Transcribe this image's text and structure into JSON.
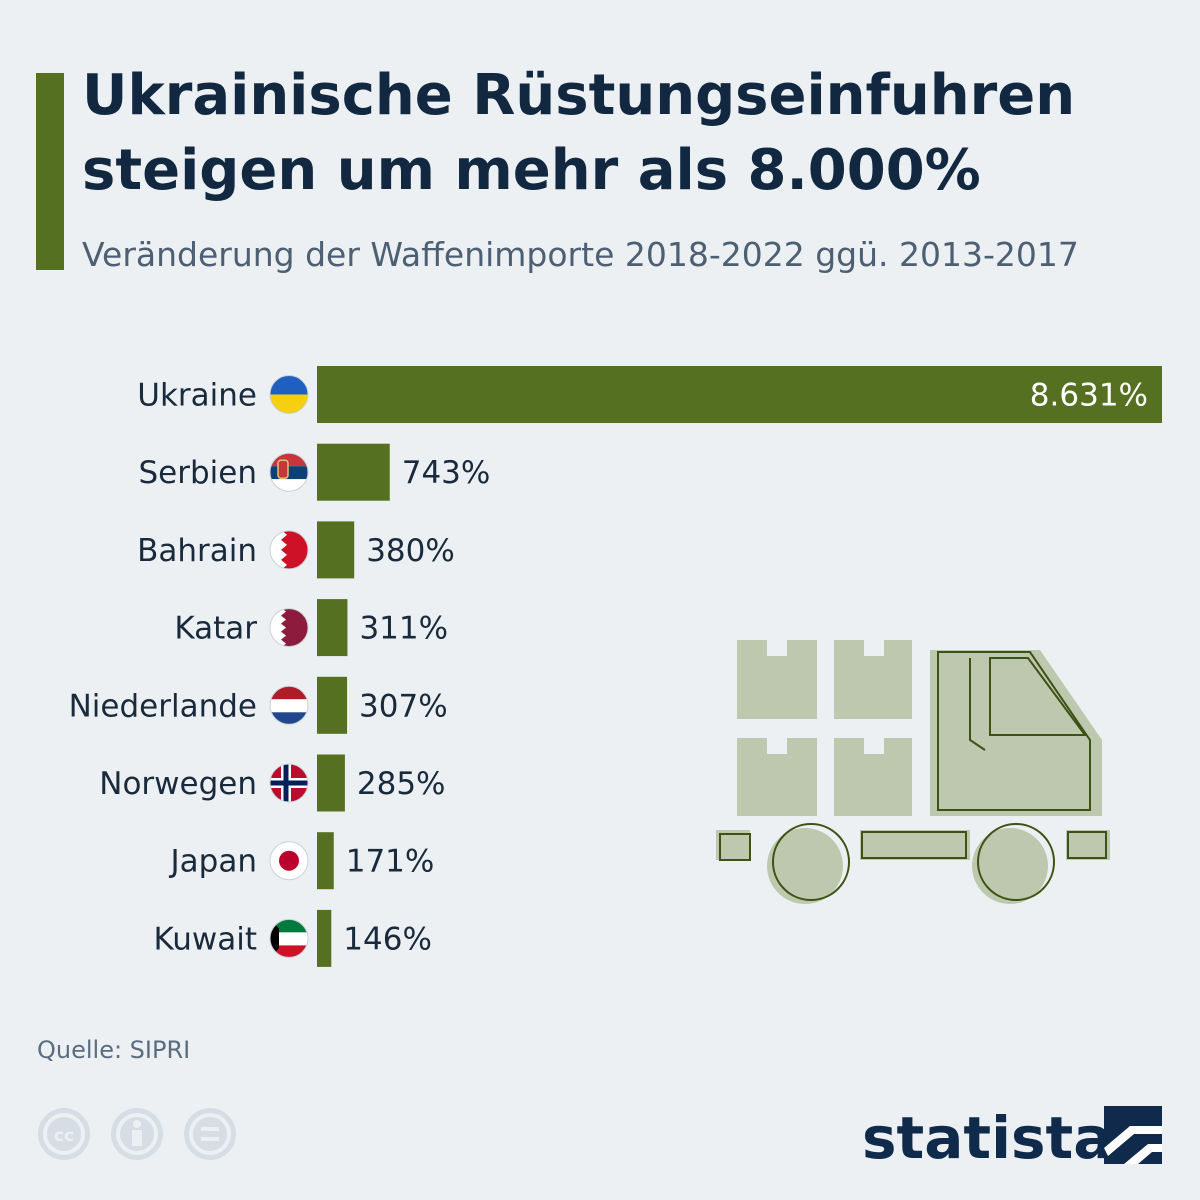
{
  "header": {
    "title": "Ukrainische Rüstungseinfuhren steigen um mehr als 8.000%",
    "subtitle": "Veränderung der Waffenimporte 2018-2022 ggü. 2013-2017"
  },
  "chart_data": {
    "type": "bar",
    "orientation": "horizontal",
    "title": "Ukrainische Rüstungseinfuhren steigen um mehr als 8.000%",
    "subtitle": "Veränderung der Waffenimporte 2018-2022 ggü. 2013-2017",
    "categories": [
      "Ukraine",
      "Serbien",
      "Bahrain",
      "Katar",
      "Niederlande",
      "Norwegen",
      "Japan",
      "Kuwait"
    ],
    "values": [
      8631,
      743,
      380,
      311,
      307,
      285,
      171,
      146
    ],
    "value_labels": [
      "8.631%",
      "743%",
      "380%",
      "311%",
      "307%",
      "285%",
      "171%",
      "146%"
    ],
    "unit": "%",
    "xlim": [
      0,
      8631
    ],
    "flags": [
      "ukraine-flag",
      "serbia-flag",
      "bahrain-flag",
      "qatar-flag",
      "netherlands-flag",
      "norway-flag",
      "japan-flag",
      "kuwait-flag"
    ],
    "colors": {
      "bar": "#557020",
      "label_dark": "#1a2a3d",
      "label_light": "#ffffff"
    }
  },
  "footer": {
    "source": "Quelle: SIPRI",
    "brand": "statista",
    "license_icons": [
      "cc-icon",
      "by-icon",
      "nd-icon"
    ]
  }
}
